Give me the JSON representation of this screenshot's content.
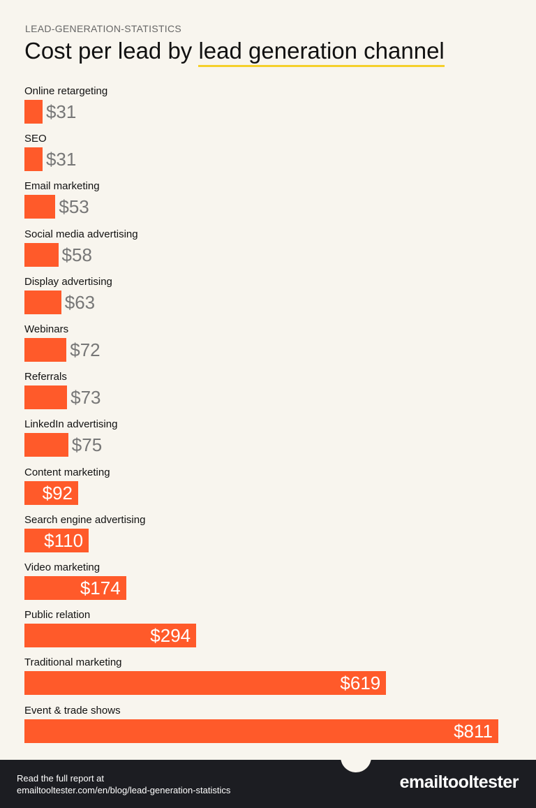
{
  "header": {
    "kicker": "LEAD-GENERATION-STATISTICS",
    "title_part1": "Cost per lead by ",
    "title_highlight": "lead generation channel"
  },
  "colors": {
    "bar": "#ff5a2a",
    "highlight": "#f5d02b",
    "background": "#f8f5ee",
    "footer": "#1c1d22"
  },
  "chart_data": {
    "type": "bar",
    "orientation": "horizontal",
    "title": "Cost per lead by lead generation channel",
    "categories": [
      "Online retargeting",
      "SEO",
      "Email marketing",
      "Social media advertising",
      "Display advertising",
      "Webinars",
      "Referrals",
      "LinkedIn advertising",
      "Content marketing",
      "Search engine advertising",
      "Video marketing",
      "Public relation",
      "Traditional marketing",
      "Event & trade shows"
    ],
    "values": [
      31,
      31,
      53,
      58,
      63,
      72,
      73,
      75,
      92,
      110,
      174,
      294,
      619,
      811
    ],
    "labels": [
      "$31",
      "$31",
      "$53",
      "$58",
      "$63",
      "$72",
      "$73",
      "$75",
      "$92",
      "$110",
      "$174",
      "$294",
      "$619",
      "$811"
    ],
    "xlim": [
      0,
      811
    ],
    "grid": false
  },
  "footer": {
    "line1": "Read the full report at",
    "line2": "emailtooltester.com/en/blog/lead-generation-statistics",
    "logo": "emailtooltester"
  }
}
